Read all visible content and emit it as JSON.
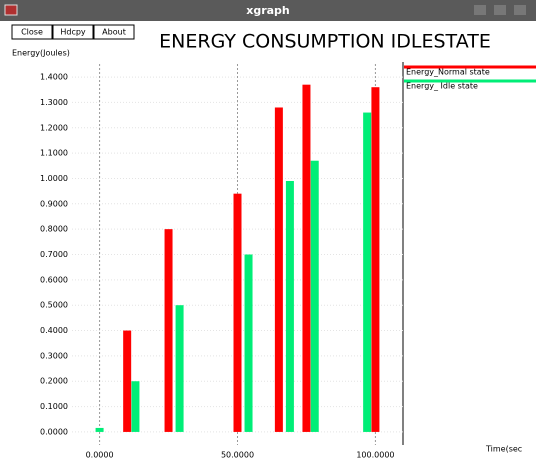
{
  "window": {
    "title": "xgraph",
    "buttons": [
      "Close",
      "Hdcpy",
      "About"
    ]
  },
  "chart_data": {
    "type": "bar",
    "title": "ENERGY CONSUMPTION IDLESTATE",
    "y_label": "Energy(Joules)",
    "x_label": "Time(sec",
    "xlim": [
      -10,
      110
    ],
    "xticks": [
      {
        "value": 0,
        "label": "0.0000"
      },
      {
        "value": 50,
        "label": "50.0000"
      },
      {
        "value": 100,
        "label": "100.0000"
      }
    ],
    "ylim": [
      -0.02,
      1.42
    ],
    "yticks": [
      {
        "value": 0,
        "label": "0.0000"
      },
      {
        "value": 0.1,
        "label": "0.1000"
      },
      {
        "value": 0.2,
        "label": "0.2000"
      },
      {
        "value": 0.3,
        "label": "0.3000"
      },
      {
        "value": 0.4,
        "label": "0.4000"
      },
      {
        "value": 0.5,
        "label": "0.5000"
      },
      {
        "value": 0.6,
        "label": "0.6000"
      },
      {
        "value": 0.7,
        "label": "0.7000"
      },
      {
        "value": 0.8,
        "label": "0.8000"
      },
      {
        "value": 0.9,
        "label": "0.9000"
      },
      {
        "value": 1.0,
        "label": "1.0000"
      },
      {
        "value": 1.1,
        "label": "1.1000"
      },
      {
        "value": 1.2,
        "label": "1.2000"
      },
      {
        "value": 1.3,
        "label": "1.3000"
      },
      {
        "value": 1.4,
        "label": "1.4000"
      }
    ],
    "grid": true,
    "series": [
      {
        "name": "Energy_Normal state",
        "color": "#ff0000",
        "x": [
          10,
          25,
          50,
          65,
          75,
          100
        ],
        "values": [
          0.4,
          0.8,
          0.94,
          1.28,
          1.37,
          1.36
        ]
      },
      {
        "name": "Energy_ Idle state",
        "color": "#00ee77",
        "x": [
          0,
          13,
          29,
          54,
          69,
          78,
          97
        ],
        "values": [
          0,
          0.2,
          0.5,
          0.7,
          0.99,
          1.07,
          1.26
        ]
      }
    ]
  }
}
